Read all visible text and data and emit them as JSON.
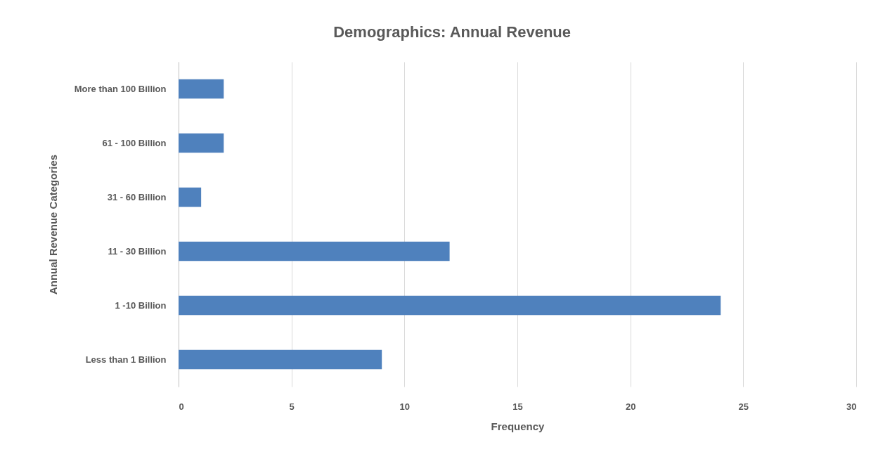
{
  "chart_data": {
    "type": "bar",
    "orientation": "horizontal",
    "title": "Demographics: Annual Revenue",
    "xlabel": "Frequency",
    "ylabel": "Annual Revenue Categories",
    "categories": [
      "More than 100 Billion",
      "61 - 100 Billion",
      "31 - 60 Billion",
      "11 - 30 Billion",
      "1 -10 Billion",
      "Less than 1 Billion"
    ],
    "values": [
      2,
      2,
      1,
      12,
      24,
      9
    ],
    "color": "#4f81bd",
    "xlim": [
      0,
      30
    ],
    "xticks": [
      0,
      5,
      10,
      15,
      20,
      25,
      30
    ],
    "grid": "x"
  }
}
